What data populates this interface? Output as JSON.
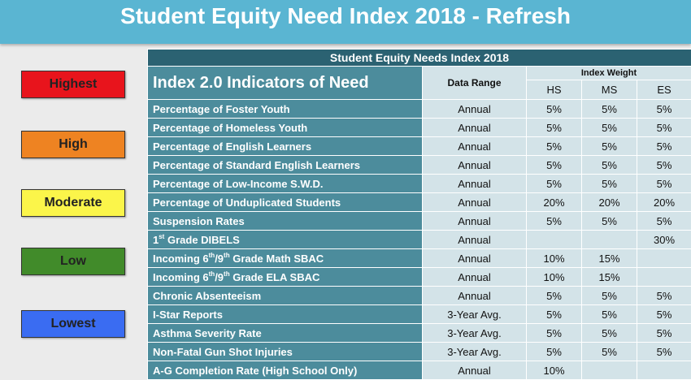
{
  "header": {
    "title": "Student Equity Need Index 2018 -  Refresh"
  },
  "legend": [
    {
      "label": "Highest",
      "color": "#e8141c"
    },
    {
      "label": "High",
      "color": "#ee8322"
    },
    {
      "label": "Moderate",
      "color": "#fbf54a"
    },
    {
      "label": "Low",
      "color": "#418b2a"
    },
    {
      "label": "Lowest",
      "color": "#3a6cf2"
    }
  ],
  "table": {
    "caption": "Student Equity Needs Index 2018",
    "indicator_header": "Index 2.0 Indicators of Need",
    "data_range_header": "Data Range",
    "index_weight_header": "Index Weight",
    "levels": [
      "HS",
      "MS",
      "ES"
    ],
    "rows": [
      {
        "name": "Percentage of Foster Youth",
        "range": "Annual",
        "hs": "5%",
        "ms": "5%",
        "es": "5%"
      },
      {
        "name": "Percentage of Homeless Youth",
        "range": "Annual",
        "hs": "5%",
        "ms": "5%",
        "es": "5%"
      },
      {
        "name": "Percentage of English Learners",
        "range": "Annual",
        "hs": "5%",
        "ms": "5%",
        "es": "5%"
      },
      {
        "name": "Percentage of Standard English Learners",
        "range": "Annual",
        "hs": "5%",
        "ms": "5%",
        "es": "5%"
      },
      {
        "name": "Percentage of Low-Income S.W.D.",
        "range": "Annual",
        "hs": "5%",
        "ms": "5%",
        "es": "5%"
      },
      {
        "name": "Percentage of Unduplicated Students",
        "range": "Annual",
        "hs": "20%",
        "ms": "20%",
        "es": "20%"
      },
      {
        "name": "Suspension Rates",
        "range": "Annual",
        "hs": "5%",
        "ms": "5%",
        "es": "5%"
      },
      {
        "name_pre": "1",
        "name_sup": "st",
        "name_post": " Grade DIBELS",
        "range": "Annual",
        "hs": "",
        "ms": "",
        "es": "30%"
      },
      {
        "name_pre": "Incoming 6",
        "name_sup": "th",
        "name_mid": "/9",
        "name_sup2": "th",
        "name_post": " Grade Math SBAC",
        "range": "Annual",
        "hs": "10%",
        "ms": "15%",
        "es": ""
      },
      {
        "name_pre": "Incoming 6",
        "name_sup": "th",
        "name_mid": "/9",
        "name_sup2": "th",
        "name_post": " Grade ELA SBAC",
        "range": "Annual",
        "hs": "10%",
        "ms": "15%",
        "es": ""
      },
      {
        "name": "Chronic Absenteeism",
        "range": "Annual",
        "hs": "5%",
        "ms": "5%",
        "es": "5%"
      },
      {
        "name": "I-Star Reports",
        "range": "3-Year Avg.",
        "hs": "5%",
        "ms": "5%",
        "es": "5%"
      },
      {
        "name": "Asthma Severity Rate",
        "range": "3-Year Avg.",
        "hs": "5%",
        "ms": "5%",
        "es": "5%"
      },
      {
        "name": "Non-Fatal Gun Shot Injuries",
        "range": "3-Year Avg.",
        "hs": "5%",
        "ms": "5%",
        "es": "5%"
      },
      {
        "name": "A-G Completion Rate (High School Only)",
        "range": "Annual",
        "hs": "10%",
        "ms": "",
        "es": ""
      }
    ]
  }
}
